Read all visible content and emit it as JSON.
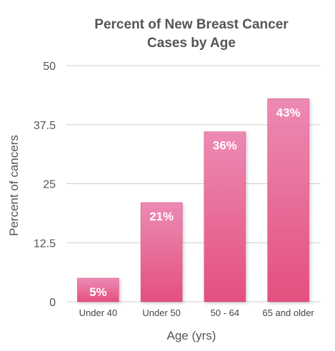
{
  "chart_data": {
    "type": "bar",
    "title_lines": [
      "Percent of New Breast Cancer",
      "Cases by Age"
    ],
    "xlabel": "Age (yrs)",
    "ylabel": "Percent of cancers",
    "categories": [
      "Under 40",
      "Under 50",
      "50 - 64",
      "65 and older"
    ],
    "values": [
      5,
      21,
      36,
      43
    ],
    "value_labels": [
      "5%",
      "21%",
      "36%",
      "43%"
    ],
    "ylim": [
      0,
      50
    ],
    "yticks": [
      0,
      12.5,
      25,
      37.5,
      50
    ],
    "ytick_labels": [
      "0",
      "12.5",
      "25",
      "37.5",
      "50"
    ],
    "grid": true,
    "colors": {
      "bar_top": "#ec8ab4",
      "bar_bottom": "#e4507f",
      "bar_edge": "#d84677"
    }
  }
}
